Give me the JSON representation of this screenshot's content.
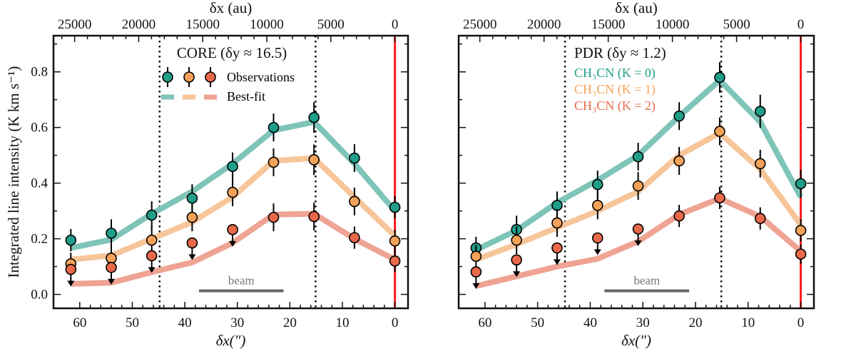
{
  "chart_data": [
    {
      "type": "line",
      "title": "CORE (δy ≈ 16.5)",
      "xlabel": "δx(″)",
      "xlabel_top": "δx (au)",
      "ylabel": "Integrated line intensity (K km s⁻¹)",
      "xlim": [
        65,
        -2.5
      ],
      "ylim": [
        -0.05,
        0.93
      ],
      "xticks": [
        "60",
        "50",
        "40",
        "30",
        "20",
        "10",
        "0"
      ],
      "yticks": [
        "0.0",
        "0.2",
        "0.4",
        "0.6",
        "0.8"
      ],
      "top_xticks": [
        "25000",
        "20000",
        "15000",
        "10000",
        "5000",
        "0"
      ],
      "au_per_arcsec": 410,
      "vlines_dotted": [
        44.8,
        15.1
      ],
      "vline_red": 0,
      "beam": {
        "label": "beam",
        "x": [
          37.3,
          21.2
        ],
        "y": 0.013
      },
      "legend": {
        "observations": "Observations",
        "bestfit": "Best-fit",
        "placement": "top-center"
      },
      "x": [
        61.7,
        54.0,
        46.3,
        38.6,
        30.9,
        23.1,
        15.4,
        7.7,
        0
      ],
      "series": [
        {
          "key": "K0",
          "obs": [
            0.195,
            0.22,
            0.285,
            0.346,
            0.46,
            0.6,
            0.636,
            0.49,
            0.313
          ],
          "yerr": [
            0.04,
            0.05,
            0.05,
            0.05,
            0.05,
            0.05,
            0.055,
            0.05,
            0.04
          ],
          "fit": [
            0.167,
            0.197,
            0.29,
            0.37,
            0.47,
            0.59,
            0.62,
            0.47,
            0.3
          ],
          "upper_limits": [],
          "color": "#1f9e89",
          "fit_color": "#7fc4b8"
        },
        {
          "key": "K1",
          "obs": [
            0.11,
            0.13,
            0.195,
            0.277,
            0.367,
            0.475,
            0.484,
            0.334,
            0.192
          ],
          "yerr": [
            0.04,
            0.05,
            0.05,
            0.05,
            0.05,
            0.05,
            0.055,
            0.05,
            0.04
          ],
          "fit": [
            0.125,
            0.14,
            0.2,
            0.26,
            0.35,
            0.48,
            0.49,
            0.35,
            0.21
          ],
          "upper_limits": [],
          "color": "#f4a259",
          "fit_color": "#f7c59a"
        },
        {
          "key": "K2",
          "obs": [
            0.09,
            0.097,
            0.139,
            0.185,
            0.233,
            0.277,
            0.28,
            0.204,
            0.12
          ],
          "yerr": [
            0,
            0,
            0,
            0,
            0,
            0.05,
            0.05,
            0.04,
            0.04
          ],
          "fit": [
            0.038,
            0.042,
            0.08,
            0.115,
            0.185,
            0.287,
            0.29,
            0.2,
            0.125
          ],
          "upper_limits": [
            0,
            1,
            2,
            3,
            4
          ],
          "color": "#e8694a",
          "fit_color": "#eea393"
        }
      ]
    },
    {
      "type": "line",
      "title": "PDR (δy ≈ 1.2)",
      "xlabel": "δx(″)",
      "xlabel_top": "δx (au)",
      "xlim": [
        65,
        -2.5
      ],
      "ylim": [
        -0.05,
        0.93
      ],
      "xticks": [
        "60",
        "50",
        "40",
        "30",
        "20",
        "10",
        "0"
      ],
      "top_xticks": [
        "25000",
        "20000",
        "15000",
        "10000",
        "5000",
        "0"
      ],
      "au_per_arcsec": 410,
      "vlines_dotted": [
        44.8,
        15.1
      ],
      "vline_red": 0,
      "beam": {
        "label": "beam",
        "x": [
          37.3,
          21.2
        ],
        "y": 0.013
      },
      "legend": {
        "entries": [
          "CH₃CN (K = 0)",
          "CH₃CN (K = 1)",
          "CH₃CN (K = 2)"
        ],
        "placement": "top-center"
      },
      "x": [
        61.7,
        54.0,
        46.3,
        38.6,
        30.9,
        23.1,
        15.4,
        7.7,
        0
      ],
      "series": [
        {
          "key": "K0",
          "name": "CH₃CN (K = 0)",
          "obs": [
            0.167,
            0.233,
            0.32,
            0.395,
            0.495,
            0.641,
            0.78,
            0.658,
            0.398
          ],
          "yerr": [
            0.04,
            0.05,
            0.05,
            0.05,
            0.05,
            0.05,
            0.055,
            0.06,
            0.05
          ],
          "fit": [
            0.16,
            0.23,
            0.33,
            0.41,
            0.5,
            0.64,
            0.77,
            0.62,
            0.35
          ],
          "upper_limits": [],
          "color": "#1f9e89",
          "fit_color": "#7fc4b8"
        },
        {
          "key": "K1",
          "name": "CH₃CN (K = 1)",
          "obs": [
            0.137,
            0.195,
            0.257,
            0.32,
            0.39,
            0.48,
            0.586,
            0.47,
            0.23
          ],
          "yerr": [
            0.04,
            0.05,
            0.05,
            0.05,
            0.05,
            0.05,
            0.05,
            0.05,
            0.04
          ],
          "fit": [
            0.125,
            0.18,
            0.24,
            0.3,
            0.37,
            0.5,
            0.58,
            0.45,
            0.25
          ],
          "upper_limits": [],
          "color": "#f4a259",
          "fit_color": "#f7c59a"
        },
        {
          "key": "K2",
          "name": "CH₃CN (K = 2)",
          "obs": [
            0.081,
            0.124,
            0.167,
            0.203,
            0.235,
            0.282,
            0.347,
            0.273,
            0.145
          ],
          "yerr": [
            0,
            0,
            0,
            0,
            0,
            0.04,
            0.04,
            0.04,
            0.035
          ],
          "fit": [
            0.03,
            0.065,
            0.1,
            0.128,
            0.19,
            0.287,
            0.345,
            0.28,
            0.155
          ],
          "upper_limits": [
            0,
            1,
            2,
            3,
            4
          ],
          "color": "#e8694a",
          "fit_color": "#eea393"
        }
      ]
    }
  ]
}
